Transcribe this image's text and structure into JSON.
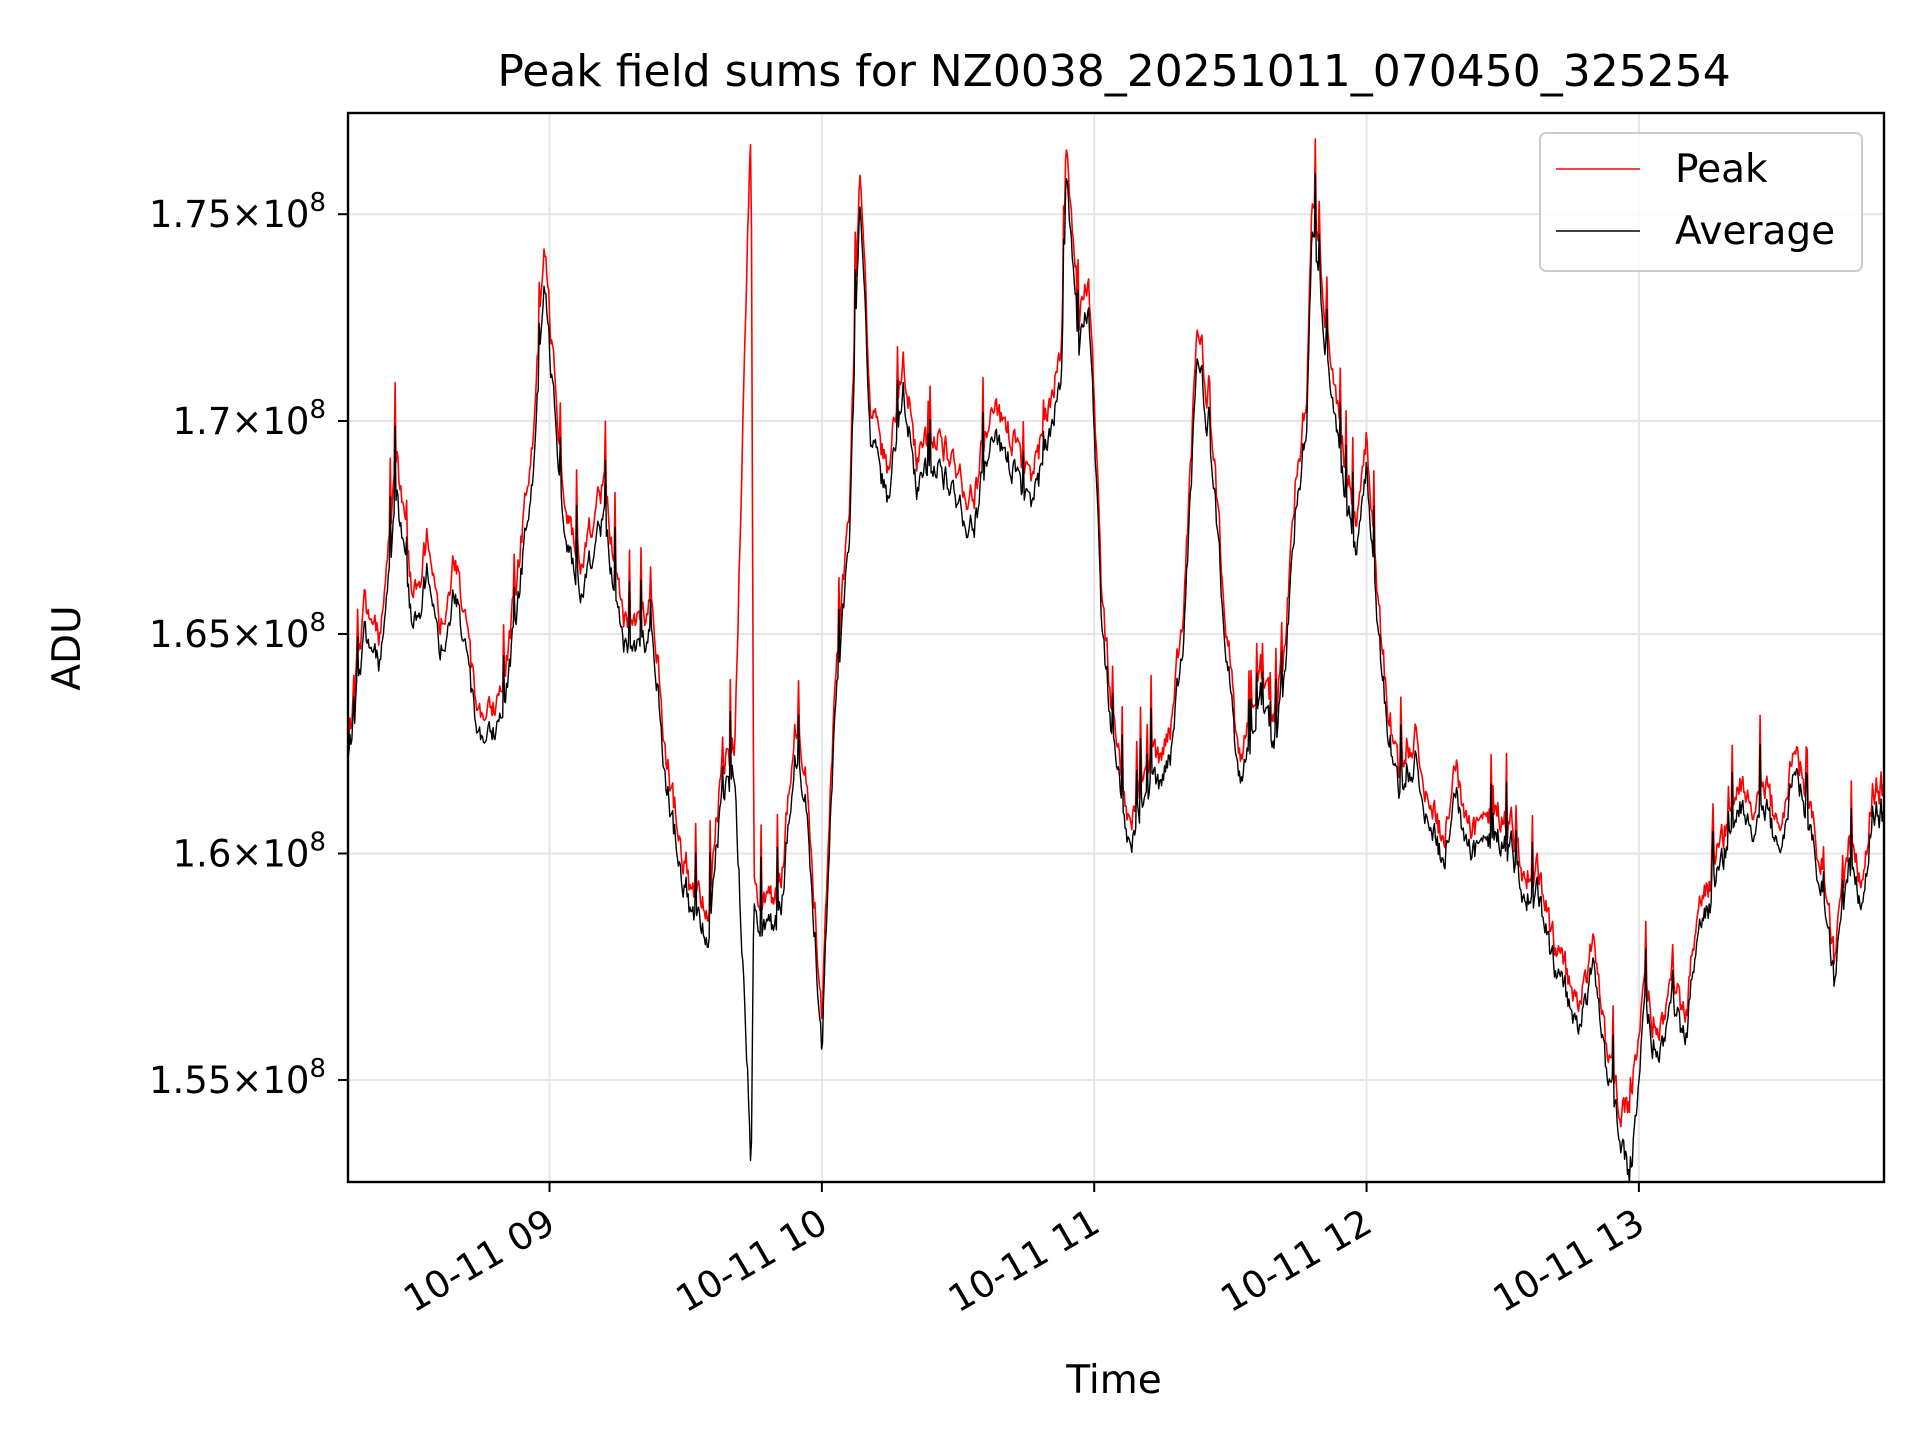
{
  "chart_data": {
    "type": "line",
    "title": "Peak field sums for NZ0038_20251011_070450_325254",
    "xlabel": "Time",
    "ylabel": "ADU",
    "x_range_hours": [
      8.26,
      13.9
    ],
    "ylim": [
      152800000,
      177500000
    ],
    "grid": true,
    "legend_position": "top-right",
    "y_ticks": [
      {
        "value": 155000000,
        "mantissa": "1.55",
        "exponent": "8"
      },
      {
        "value": 160000000,
        "mantissa": "1.6",
        "exponent": "8"
      },
      {
        "value": 165000000,
        "mantissa": "1.65",
        "exponent": "8"
      },
      {
        "value": 170000000,
        "mantissa": "1.7",
        "exponent": "8"
      },
      {
        "value": 175000000,
        "mantissa": "1.75",
        "exponent": "8"
      }
    ],
    "x_ticks": [
      {
        "value": 9,
        "label": "10-11 09"
      },
      {
        "value": 10,
        "label": "10-11 10"
      },
      {
        "value": 11,
        "label": "10-11 11"
      },
      {
        "value": 12,
        "label": "10-11 12"
      },
      {
        "value": 13,
        "label": "10-11 13"
      }
    ],
    "series": [
      {
        "name": "Peak",
        "color": "#ff0000",
        "x": [
          8.26,
          8.32,
          8.38,
          8.44,
          8.5,
          8.55,
          8.6,
          8.65,
          8.7,
          8.75,
          8.82,
          8.88,
          8.94,
          8.98,
          9.05,
          9.12,
          9.2,
          9.27,
          9.32,
          9.38,
          9.42,
          9.47,
          9.52,
          9.58,
          9.63,
          9.68,
          9.74,
          9.75,
          9.8,
          9.85,
          9.9,
          9.94,
          10.0,
          10.05,
          10.1,
          10.14,
          10.18,
          10.24,
          10.3,
          10.35,
          10.42,
          10.5,
          10.56,
          10.62,
          10.7,
          10.76,
          10.82,
          10.88,
          10.9,
          10.94,
          10.98,
          11.03,
          11.08,
          11.13,
          11.18,
          11.24,
          11.28,
          11.33,
          11.38,
          11.43,
          11.48,
          11.53,
          11.58,
          11.62,
          11.66,
          11.7,
          11.74,
          11.78,
          11.8,
          11.84,
          11.88,
          11.92,
          11.96,
          12.0,
          12.04,
          12.08,
          12.13,
          12.18,
          12.23,
          12.28,
          12.33,
          12.38,
          12.43,
          12.48,
          12.53,
          12.58,
          12.63,
          12.68,
          12.73,
          12.78,
          12.83,
          12.88,
          12.93,
          12.97,
          13.02,
          13.07,
          13.12,
          13.17,
          13.22,
          13.27,
          13.32,
          13.37,
          13.42,
          13.47,
          13.52,
          13.57,
          13.62,
          13.67,
          13.72,
          13.77,
          13.82,
          13.86,
          13.9
        ],
        "values": [
          162400000,
          165600000,
          164900000,
          169100000,
          165700000,
          167200000,
          165200000,
          166800000,
          164700000,
          162900000,
          163500000,
          166200000,
          169800000,
          174200000,
          168300000,
          166600000,
          168500000,
          165400000,
          165200000,
          165800000,
          162400000,
          160700000,
          159200000,
          158600000,
          161800000,
          162400000,
          177500000,
          159400000,
          158900000,
          159200000,
          162800000,
          161700000,
          156500000,
          163900000,
          167800000,
          176200000,
          170300000,
          168900000,
          171300000,
          169100000,
          169800000,
          168600000,
          168200000,
          170400000,
          169600000,
          168500000,
          169800000,
          171800000,
          176900000,
          172200000,
          173400000,
          165600000,
          162500000,
          160400000,
          161900000,
          162200000,
          162800000,
          165900000,
          172500000,
          169900000,
          165600000,
          162100000,
          163400000,
          164100000,
          162900000,
          164800000,
          168600000,
          170600000,
          175400000,
          173100000,
          171200000,
          168900000,
          167700000,
          169600000,
          165800000,
          163200000,
          161700000,
          162800000,
          161200000,
          160400000,
          161800000,
          160500000,
          160600000,
          161000000,
          160700000,
          159400000,
          159600000,
          158100000,
          157400000,
          156500000,
          157900000,
          155500000,
          154500000,
          154500000,
          157100000,
          156000000,
          157200000,
          156300000,
          158900000,
          159500000,
          160600000,
          161400000,
          160800000,
          161400000,
          160500000,
          162700000,
          161200000,
          159800000,
          157500000,
          160400000,
          159200000,
          161600000,
          161200000
        ]
      },
      {
        "name": "Average",
        "color": "#000000",
        "x": [
          8.26,
          8.32,
          8.38,
          8.44,
          8.5,
          8.55,
          8.6,
          8.65,
          8.7,
          8.75,
          8.82,
          8.88,
          8.94,
          8.98,
          9.05,
          9.12,
          9.2,
          9.27,
          9.32,
          9.38,
          9.42,
          9.47,
          9.52,
          9.58,
          9.63,
          9.68,
          9.74,
          9.75,
          9.8,
          9.85,
          9.9,
          9.94,
          10.0,
          10.05,
          10.1,
          10.14,
          10.18,
          10.24,
          10.3,
          10.35,
          10.42,
          10.5,
          10.56,
          10.62,
          10.7,
          10.76,
          10.82,
          10.88,
          10.9,
          10.94,
          10.98,
          11.03,
          11.08,
          11.13,
          11.18,
          11.24,
          11.28,
          11.33,
          11.38,
          11.43,
          11.48,
          11.53,
          11.58,
          11.62,
          11.66,
          11.7,
          11.74,
          11.78,
          11.8,
          11.84,
          11.88,
          11.92,
          11.96,
          12.0,
          12.04,
          12.08,
          12.13,
          12.18,
          12.23,
          12.28,
          12.33,
          12.38,
          12.43,
          12.48,
          12.53,
          12.58,
          12.63,
          12.68,
          12.73,
          12.78,
          12.83,
          12.88,
          12.93,
          12.97,
          13.02,
          13.07,
          13.12,
          13.17,
          13.22,
          13.27,
          13.32,
          13.37,
          13.42,
          13.47,
          13.52,
          13.57,
          13.62,
          13.67,
          13.72,
          13.77,
          13.82,
          13.86,
          13.9
        ],
        "values": [
          162100000,
          164900000,
          164300000,
          168200000,
          165000000,
          166400000,
          164600000,
          166000000,
          164100000,
          162400000,
          162900000,
          165500000,
          168900000,
          173300000,
          167600000,
          165900000,
          167700000,
          164800000,
          164600000,
          165100000,
          161800000,
          160100000,
          158700000,
          158000000,
          161200000,
          161800000,
          153200000,
          158800000,
          158300000,
          158600000,
          162100000,
          161100000,
          155800000,
          163300000,
          167100000,
          175400000,
          169600000,
          168200000,
          170600000,
          168400000,
          169100000,
          167900000,
          167500000,
          169700000,
          168900000,
          167900000,
          169100000,
          171100000,
          176200000,
          171600000,
          172700000,
          164900000,
          162000000,
          159900000,
          161300000,
          161600000,
          162200000,
          165200000,
          171800000,
          169200000,
          165000000,
          161600000,
          162800000,
          163500000,
          162300000,
          164200000,
          167900000,
          169900000,
          174700000,
          172400000,
          170500000,
          168200000,
          167000000,
          168900000,
          165100000,
          162700000,
          161200000,
          162200000,
          160700000,
          159900000,
          161200000,
          160000000,
          160100000,
          160400000,
          160200000,
          158900000,
          159100000,
          157600000,
          156900000,
          156000000,
          157400000,
          155000000,
          154000000,
          152800000,
          156600000,
          155500000,
          156700000,
          155800000,
          158400000,
          159000000,
          160100000,
          160900000,
          160300000,
          160900000,
          160000000,
          162200000,
          160700000,
          159300000,
          157000000,
          159900000,
          158700000,
          161100000,
          160600000
        ]
      }
    ]
  }
}
